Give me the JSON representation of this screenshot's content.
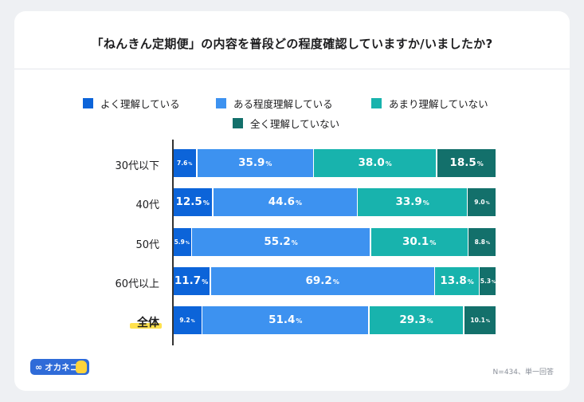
{
  "title": "「ねんきん定期便」の内容を普段どの程度確認していますか/いましたか?",
  "legend": [
    {
      "label": "よく理解している",
      "color": "#0c64d9"
    },
    {
      "label": "ある程度理解している",
      "color": "#3d92f0"
    },
    {
      "label": "あまり理解していない",
      "color": "#18b3ad"
    },
    {
      "label": "全く理解していない",
      "color": "#13706b"
    }
  ],
  "logo": {
    "symbol": "∞",
    "text": "オカネコ",
    "icon": "cat-icon"
  },
  "footnote": "N=434、単一回答",
  "chart_data": {
    "type": "bar",
    "orientation": "horizontal",
    "stacked": true,
    "percent_unit": "%",
    "categories": [
      "30代以下",
      "40代",
      "50代",
      "60代以上",
      "全体"
    ],
    "series": [
      {
        "name": "よく理解している",
        "values": [
          7.6,
          12.5,
          5.9,
          11.7,
          9.2
        ]
      },
      {
        "name": "ある程度理解している",
        "values": [
          35.9,
          44.6,
          55.2,
          69.2,
          51.4
        ]
      },
      {
        "name": "あまり理解していない",
        "values": [
          38.0,
          33.9,
          30.1,
          13.8,
          29.3
        ]
      },
      {
        "name": "全く理解していない",
        "values": [
          18.5,
          9.0,
          8.8,
          5.3,
          10.1
        ]
      }
    ],
    "value_labels": [
      [
        "7.6",
        "35.9",
        "38.0",
        "18.5"
      ],
      [
        "12.5",
        "44.6",
        "33.9",
        "9.0"
      ],
      [
        "5.9",
        "55.2",
        "30.1",
        "8.8"
      ],
      [
        "11.7",
        "69.2",
        "13.8",
        "5.3"
      ],
      [
        "9.2",
        "51.4",
        "29.3",
        "10.1"
      ]
    ],
    "highlighted_category": "全体",
    "legend_position": "top",
    "grid": false
  }
}
